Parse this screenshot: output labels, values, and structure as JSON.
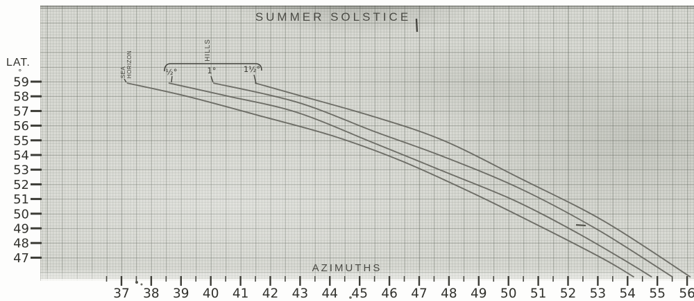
{
  "title": "SUMMER SOLSTICE",
  "axes": {
    "lat_label": "LAT.",
    "lat_unit_mark": "°",
    "x_label": "AZIMUTHS",
    "lat_ticks": [
      "59",
      "58",
      "57",
      "56",
      "55",
      "54",
      "53",
      "52",
      "51",
      "50",
      "49",
      "48",
      "47"
    ],
    "azimuth_ticks": [
      "37",
      "38",
      "39",
      "40",
      "41",
      "42",
      "43",
      "44",
      "45",
      "46",
      "47",
      "48",
      "49",
      "50",
      "51",
      "52",
      "53",
      "54",
      "55",
      "56"
    ]
  },
  "annotations": {
    "sea_horizon_line1": "SEA",
    "sea_horizon_line2": "HORIZON",
    "hills_label": "HILLS",
    "hill_elevations": [
      "½°",
      "1°",
      "1½°"
    ]
  },
  "colors": {
    "paper": "#dadbd5",
    "ink": "#31312c",
    "curve": "#63635c",
    "grid_major": "#8f9589",
    "grid_minor": "#b8bcb2"
  },
  "chart_data": {
    "type": "line",
    "title": "SUMMER SOLSTICE",
    "xlabel": "AZIMUTHS",
    "ylabel": "LAT.",
    "xlim": [
      36.5,
      56.5
    ],
    "ylim": [
      45.5,
      59.5
    ],
    "grid": true,
    "legend_position": "labels-at-curve-tops",
    "series": [
      {
        "name": "SEA HORIZON",
        "points": [
          [
            37.2,
            58.9
          ],
          [
            39.2,
            58.0
          ],
          [
            41.6,
            56.7
          ],
          [
            44.1,
            55.3
          ],
          [
            46.4,
            53.6
          ],
          [
            48.8,
            51.4
          ],
          [
            51.1,
            49.1
          ],
          [
            53.2,
            46.9
          ],
          [
            54.2,
            45.7
          ]
        ]
      },
      {
        "name": "HILLS ½°",
        "points": [
          [
            38.6,
            58.9
          ],
          [
            40.6,
            58.0
          ],
          [
            42.9,
            56.9
          ],
          [
            45.5,
            54.8
          ],
          [
            47.8,
            52.9
          ],
          [
            50.2,
            50.9
          ],
          [
            52.3,
            48.7
          ],
          [
            54.0,
            46.7
          ],
          [
            54.8,
            45.7
          ]
        ]
      },
      {
        "name": "HILLS 1°",
        "points": [
          [
            40.1,
            58.9
          ],
          [
            42.9,
            57.6
          ],
          [
            45.5,
            55.6
          ],
          [
            47.8,
            53.9
          ],
          [
            50.4,
            51.7
          ],
          [
            53.0,
            48.9
          ],
          [
            55.5,
            45.7
          ]
        ]
      },
      {
        "name": "HILLS 1½°",
        "points": [
          [
            41.5,
            58.9
          ],
          [
            42.9,
            58.1
          ],
          [
            45.5,
            56.6
          ],
          [
            47.8,
            55.0
          ],
          [
            50.4,
            52.4
          ],
          [
            53.2,
            49.5
          ],
          [
            56.1,
            45.7
          ]
        ]
      }
    ]
  }
}
